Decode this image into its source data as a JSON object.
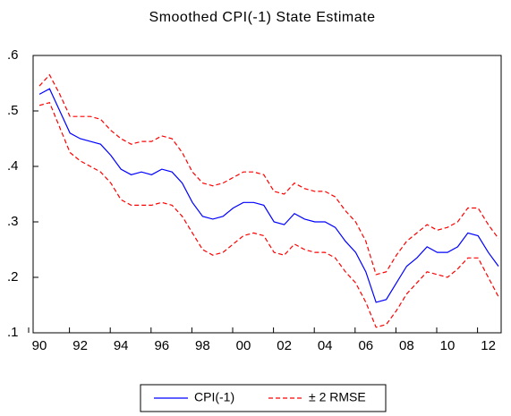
{
  "chart_data": {
    "type": "line",
    "title": "Smoothed CPI(-1) State Estimate",
    "categories": [
      "90",
      null,
      null,
      null,
      "92",
      null,
      null,
      null,
      "94",
      null,
      null,
      null,
      "96",
      null,
      null,
      null,
      "98",
      null,
      null,
      null,
      "00",
      null,
      null,
      null,
      "02",
      null,
      null,
      null,
      "04",
      null,
      null,
      null,
      "06",
      null,
      null,
      null,
      "08",
      null,
      null,
      null,
      "10",
      null,
      null,
      null,
      "12",
      null
    ],
    "ylim": [
      0.1,
      0.6
    ],
    "yticks": [
      {
        "value": 0.1,
        "label": ".1"
      },
      {
        "value": 0.2,
        "label": ".2"
      },
      {
        "value": 0.3,
        "label": ".3"
      },
      {
        "value": 0.4,
        "label": ".4"
      },
      {
        "value": 0.5,
        "label": ".5"
      },
      {
        "value": 0.6,
        "label": ".6"
      }
    ],
    "series": [
      {
        "name": "CPI(-1)",
        "color": "#0000ff",
        "values": [
          0.53,
          0.54,
          0.5,
          0.46,
          0.45,
          0.445,
          0.44,
          0.42,
          0.395,
          0.385,
          0.39,
          0.385,
          0.395,
          0.39,
          0.37,
          0.335,
          0.31,
          0.305,
          0.31,
          0.325,
          0.335,
          0.335,
          0.33,
          0.3,
          0.295,
          0.315,
          0.305,
          0.3,
          0.3,
          0.29,
          0.265,
          0.245,
          0.21,
          0.155,
          0.16,
          0.19,
          0.22,
          0.235,
          0.255,
          0.245,
          0.245,
          0.255,
          0.28,
          0.275,
          0.245,
          0.22
        ]
      },
      {
        "name": "± 2 RMSE",
        "color": "#ff0000",
        "upper": [
          0.545,
          0.565,
          0.53,
          0.49,
          0.49,
          0.49,
          0.485,
          0.465,
          0.45,
          0.44,
          0.445,
          0.445,
          0.455,
          0.45,
          0.425,
          0.39,
          0.37,
          0.365,
          0.37,
          0.38,
          0.39,
          0.39,
          0.385,
          0.355,
          0.35,
          0.37,
          0.36,
          0.355,
          0.355,
          0.345,
          0.32,
          0.3,
          0.265,
          0.205,
          0.21,
          0.24,
          0.265,
          0.28,
          0.295,
          0.285,
          0.29,
          0.3,
          0.325,
          0.325,
          0.295,
          0.27
        ],
        "lower": [
          0.51,
          0.515,
          0.47,
          0.425,
          0.41,
          0.4,
          0.39,
          0.37,
          0.34,
          0.33,
          0.33,
          0.33,
          0.335,
          0.33,
          0.31,
          0.28,
          0.25,
          0.24,
          0.245,
          0.26,
          0.275,
          0.28,
          0.275,
          0.245,
          0.24,
          0.26,
          0.25,
          0.245,
          0.245,
          0.235,
          0.21,
          0.19,
          0.155,
          0.11,
          0.115,
          0.14,
          0.17,
          0.19,
          0.21,
          0.205,
          0.2,
          0.215,
          0.235,
          0.235,
          0.2,
          0.165
        ]
      }
    ]
  }
}
